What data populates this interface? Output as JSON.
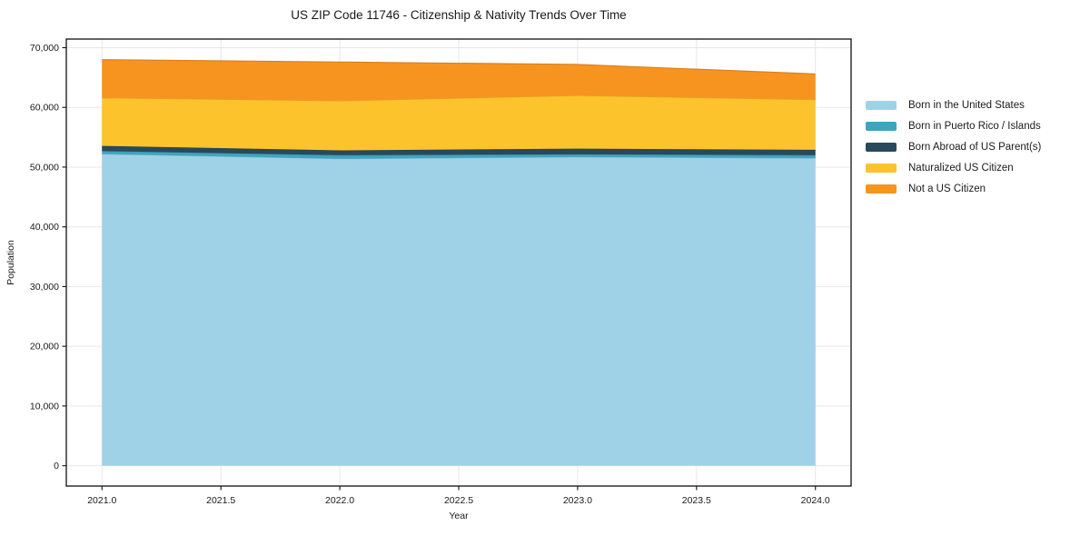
{
  "chart_data": {
    "type": "area",
    "title": "US ZIP Code 11746 - Citizenship & Nativity Trends Over Time",
    "xlabel": "Year",
    "ylabel": "Population",
    "x": [
      2021,
      2022,
      2023,
      2024
    ],
    "series": [
      {
        "name": "Born in the United States",
        "color": "#9fd2e7",
        "values": [
          52200,
          51400,
          51700,
          51500
        ]
      },
      {
        "name": "Born in Puerto Rico / Islands",
        "color": "#3fa5bf",
        "values": [
          500,
          600,
          450,
          500
        ]
      },
      {
        "name": "Born Abroad of US Parent(s)",
        "color": "#28495c",
        "values": [
          850,
          800,
          950,
          900
        ]
      },
      {
        "name": "Naturalized US Citizen",
        "color": "#fcc32d",
        "values": [
          8050,
          8300,
          8900,
          8400
        ]
      },
      {
        "name": "Not a US Citizen",
        "color": "#f79420",
        "values": [
          6400,
          6500,
          5200,
          4300
        ]
      }
    ],
    "stacked": true,
    "xlim": [
      2020.85,
      2024.15
    ],
    "ylim": [
      -3402,
      71442
    ],
    "xticks": [
      2021.0,
      2021.5,
      2022.0,
      2022.5,
      2023.0,
      2023.5,
      2024.0
    ],
    "xtick_labels": [
      "2021.0",
      "2021.5",
      "2022.0",
      "2022.5",
      "2023.0",
      "2023.5",
      "2024.0"
    ],
    "yticks": [
      0,
      10000,
      20000,
      30000,
      40000,
      50000,
      60000,
      70000
    ],
    "ytick_labels": [
      "0",
      "10,000",
      "20,000",
      "30,000",
      "40,000",
      "50,000",
      "60,000",
      "70,000"
    ],
    "grid": true,
    "grid_color": "#e7e7e7",
    "spine_color": "#111111",
    "legend_position": "right-of-plot"
  }
}
